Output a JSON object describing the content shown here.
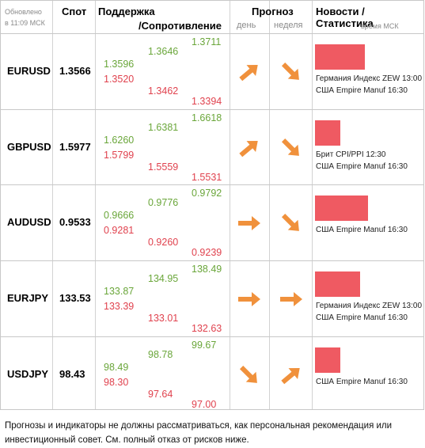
{
  "header": {
    "updated": "Обновлено",
    "updated_time": "в 11:09 МСК",
    "spot": "Спот",
    "support": "Поддержка",
    "resistance": "/Сопротивление",
    "forecast": "Прогноз",
    "forecast_day": "день",
    "forecast_week": "неделя",
    "news": "Новости / Статистика",
    "news_time": "время МСК"
  },
  "colors": {
    "green": "#6aa63a",
    "red": "#e0424e",
    "arrow": "#f0913c",
    "bar": "#ef5a62"
  },
  "rows": [
    {
      "pair": "EURUSD",
      "spot": "1.3566",
      "s1": "1.3596",
      "s2": "1.3520",
      "m1": "1.3646",
      "m2": "1.3462",
      "e1": "1.3711",
      "e2": "1.3394",
      "day": "up-right-arrow-icon",
      "week": "down-right-arrow-icon",
      "bar_level": 0.9,
      "news": [
        "Германия Индекс ZEW 13:00",
        "США Empire Manuf 16:30"
      ]
    },
    {
      "pair": "GBPUSD",
      "spot": "1.5977",
      "s1": "1.6260",
      "s2": "1.5799",
      "m1": "1.6381",
      "m2": "1.5559",
      "e1": "1.6618",
      "e2": "1.5531",
      "day": "up-right-arrow-icon",
      "week": "down-right-arrow-icon",
      "bar_level": 0.45,
      "news": [
        "Брит CPI/PPI 12:30",
        "США Empire Manuf 16:30"
      ]
    },
    {
      "pair": "AUDUSD",
      "spot": "0.9533",
      "s1": "0.9666",
      "s2": "0.9281",
      "m1": "0.9776",
      "m2": "0.9260",
      "e1": "0.9792",
      "e2": "0.9239",
      "day": "right-arrow-icon",
      "week": "down-right-arrow-icon",
      "bar_level": 0.95,
      "news": [
        "США Empire Manuf 16:30"
      ]
    },
    {
      "pair": "EURJPY",
      "spot": "133.53",
      "s1": "133.87",
      "s2": "133.39",
      "m1": "134.95",
      "m2": "133.01",
      "e1": "138.49",
      "e2": "132.63",
      "day": "right-arrow-icon",
      "week": "right-arrow-icon",
      "bar_level": 0.82,
      "news": [
        "Германия Индекс ZEW 13:00",
        "США Empire Manuf 16:30"
      ]
    },
    {
      "pair": "USDJPY",
      "spot": "98.43",
      "s1": "98.49",
      "s2": "98.30",
      "m1": "98.78",
      "m2": "97.64",
      "e1": "99.67",
      "e2": "97.00",
      "day": "down-right-arrow-icon",
      "week": "up-right-arrow-icon",
      "bar_level": 0.45,
      "news": [
        "США Empire Manuf 16:30"
      ]
    }
  ],
  "disclaimer": "Прогнозы и индикаторы не должны рассматриваться, как персональная рекомендация или инвестиционный совет. См. полный отказ от рисков ниже."
}
